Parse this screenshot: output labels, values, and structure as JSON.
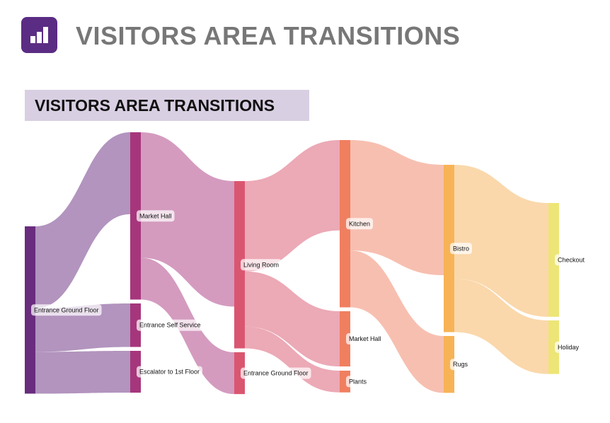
{
  "header": {
    "title": "VISITORS AREA TRANSITIONS",
    "icon": "bar-chart-icon",
    "icon_color": "#5b2c83"
  },
  "chart_data": {
    "type": "sankey",
    "title": "VISITORS AREA TRANSITIONS",
    "nodes": [
      {
        "id": "egf0",
        "label": "Entrance Ground Floor",
        "column": 0,
        "color": "#6a2c7e",
        "link_color": "#b294be"
      },
      {
        "id": "mh1",
        "label": "Market Hall",
        "column": 1,
        "color": "#a6367c",
        "link_color": "#d49bbf"
      },
      {
        "id": "ess1",
        "label": "Entrance Self Service",
        "column": 1,
        "color": "#a6367c",
        "link_color": "#d49bbf"
      },
      {
        "id": "esc1",
        "label": "Escalator to 1st Floor",
        "column": 1,
        "color": "#a6367c",
        "link_color": "#d49bbf"
      },
      {
        "id": "lr2",
        "label": "Living Room",
        "column": 2,
        "color": "#da5670",
        "link_color": "#eca9b6"
      },
      {
        "id": "egf2",
        "label": "Entrance Ground Floor",
        "column": 2,
        "color": "#da5670",
        "link_color": "#eca9b6"
      },
      {
        "id": "kit3",
        "label": "Kitchen",
        "column": 3,
        "color": "#f07f60",
        "link_color": "#f7bfb0"
      },
      {
        "id": "mh3",
        "label": "Market Hall",
        "column": 3,
        "color": "#f07f60",
        "link_color": "#f7bfb0"
      },
      {
        "id": "pl3",
        "label": "Plants",
        "column": 3,
        "color": "#f07f60",
        "link_color": "#f7bfb0"
      },
      {
        "id": "bis4",
        "label": "Bistro",
        "column": 4,
        "color": "#f7b356",
        "link_color": "#fad8ab"
      },
      {
        "id": "rug4",
        "label": "Rugs",
        "column": 4,
        "color": "#f7b356",
        "link_color": "#fad8ab"
      },
      {
        "id": "chk5",
        "label": "Checkout",
        "column": 5,
        "color": "#ede576",
        "link_color": "#f5efa8"
      },
      {
        "id": "hol5",
        "label": "Holiday",
        "column": 5,
        "color": "#ede576",
        "link_color": "#f5efa8"
      }
    ],
    "links": [
      {
        "source": "egf0",
        "target": "mh1",
        "value": 49
      },
      {
        "source": "egf0",
        "target": "ess1",
        "value": 26
      },
      {
        "source": "egf0",
        "target": "esc1",
        "value": 25
      },
      {
        "source": "mh1",
        "target": "lr2",
        "value": 75
      },
      {
        "source": "mh1",
        "target": "egf2",
        "value": 25
      },
      {
        "source": "lr2",
        "target": "kit3",
        "value": 54
      },
      {
        "source": "lr2",
        "target": "mh3",
        "value": 33
      },
      {
        "source": "lr2",
        "target": "pl3",
        "value": 13
      },
      {
        "source": "kit3",
        "target": "bis4",
        "value": 66
      },
      {
        "source": "kit3",
        "target": "rug4",
        "value": 34
      },
      {
        "source": "bis4",
        "target": "chk5",
        "value": 68
      },
      {
        "source": "bis4",
        "target": "hol5",
        "value": 32
      }
    ]
  }
}
